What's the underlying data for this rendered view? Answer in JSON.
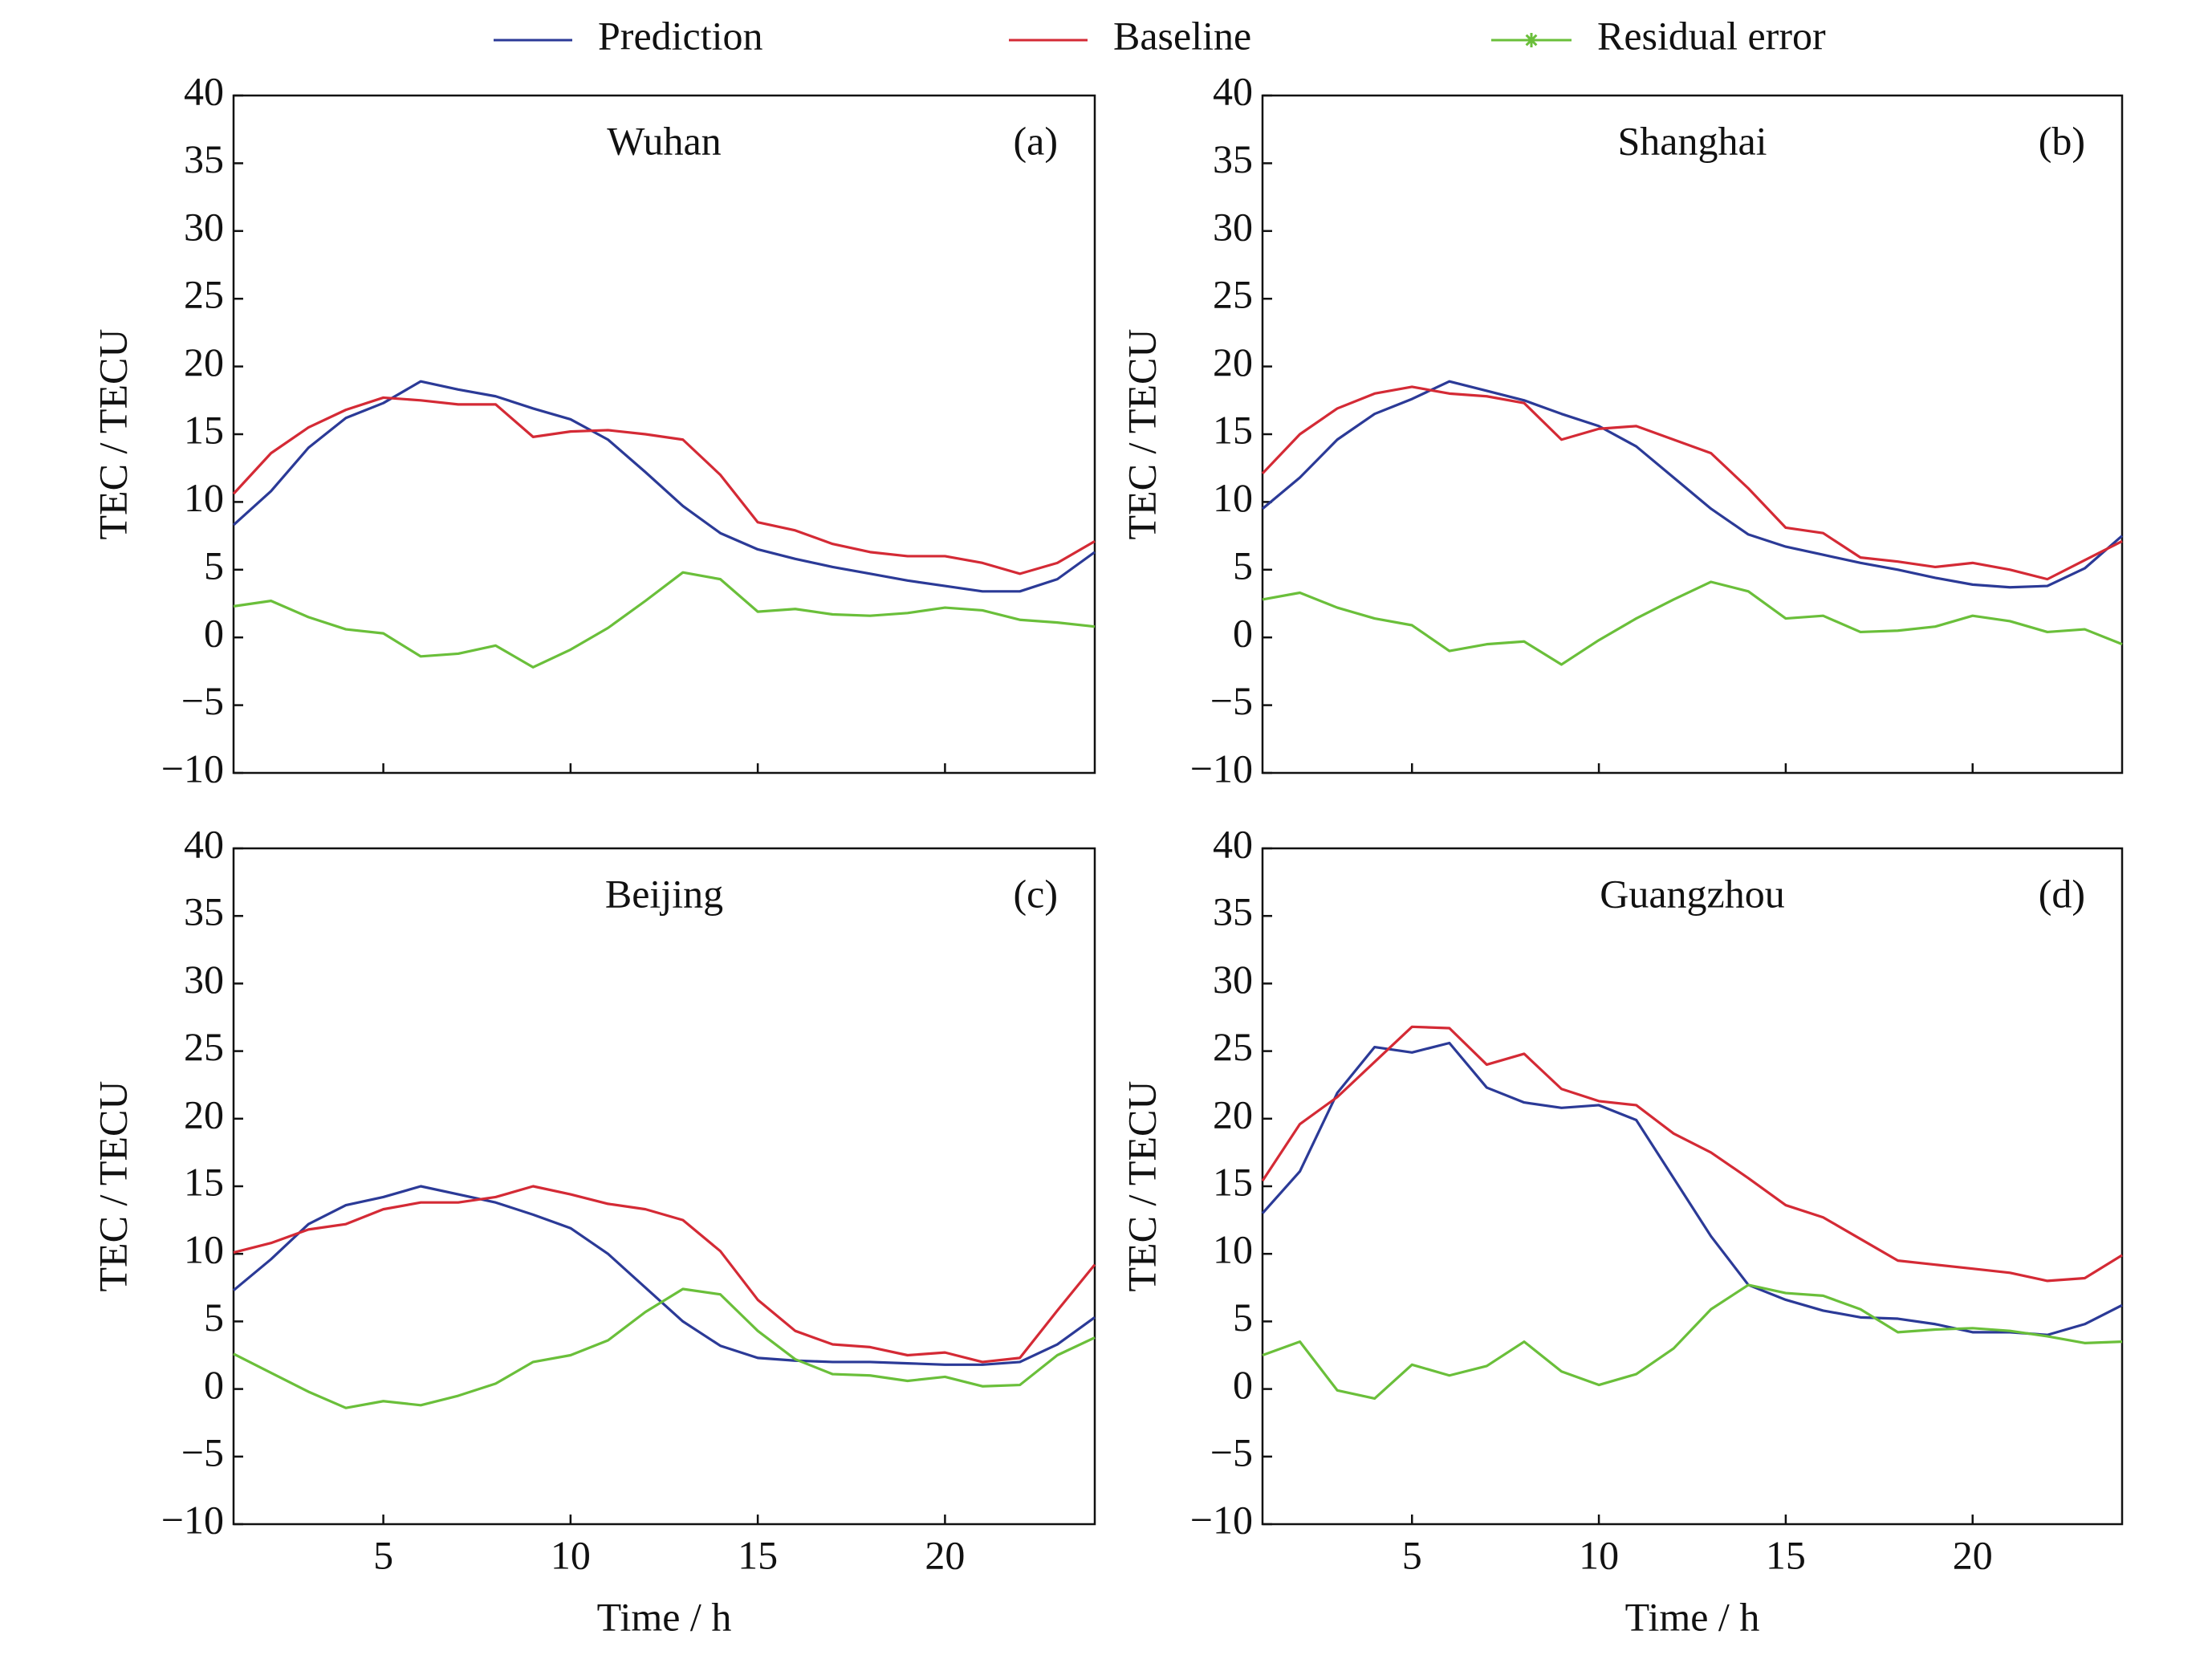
{
  "chart_data": [
    {
      "type": "line",
      "title": "Wuhan",
      "panel_label": "(a)",
      "ylabel": "TEC / TECU",
      "x": [
        1,
        2,
        3,
        4,
        5,
        6,
        7,
        8,
        9,
        10,
        11,
        12,
        13,
        14,
        15,
        16,
        17,
        18,
        19,
        20,
        21,
        22,
        23,
        24
      ],
      "xlim": [
        1,
        24
      ],
      "xticks": [
        5,
        10,
        15,
        20
      ],
      "ylim": [
        -10,
        40
      ],
      "yticks": [
        {
          "value": -10,
          "label": "−10"
        },
        {
          "value": -5,
          "label": "−5"
        },
        0,
        5,
        10,
        15,
        20,
        25,
        30,
        35,
        40
      ],
      "series": [
        {
          "name": "Prediction",
          "color": "#2b3a97",
          "values": [
            8.3,
            10.8,
            14,
            16.2,
            17.3,
            18.9,
            18.3,
            17.8,
            16.9,
            16.1,
            14.6,
            12.2,
            9.7,
            7.7,
            6.5,
            5.8,
            5.2,
            4.7,
            4.2,
            3.8,
            3.4,
            3.4,
            4.3,
            6.3
          ]
        },
        {
          "name": "Baseline",
          "color": "#d42a35",
          "values": [
            10.6,
            13.6,
            15.5,
            16.8,
            17.7,
            17.5,
            17.2,
            17.2,
            14.8,
            15.2,
            15.3,
            15.0,
            14.6,
            12.0,
            8.5,
            7.9,
            6.9,
            6.3,
            6.0,
            6.0,
            5.5,
            4.7,
            5.5,
            7.1
          ]
        },
        {
          "name": "Residual error",
          "color": "#6abf3a",
          "legend_marker": "star",
          "values": [
            2.3,
            2.7,
            1.5,
            0.6,
            0.3,
            -1.4,
            -1.2,
            -0.6,
            -2.2,
            -0.9,
            0.7,
            2.7,
            4.8,
            4.3,
            1.9,
            2.1,
            1.7,
            1.6,
            1.8,
            2.2,
            2.0,
            1.3,
            1.1,
            0.8
          ]
        }
      ]
    },
    {
      "type": "line",
      "title": "Shanghai",
      "panel_label": "(b)",
      "ylabel": "TEC / TECU",
      "x": [
        1,
        2,
        3,
        4,
        5,
        6,
        7,
        8,
        9,
        10,
        11,
        12,
        13,
        14,
        15,
        16,
        17,
        18,
        19,
        20,
        21,
        22,
        23,
        24
      ],
      "xlim": [
        1,
        24
      ],
      "xticks": [
        5,
        10,
        15,
        20
      ],
      "ylim": [
        -10,
        40
      ],
      "yticks": [
        {
          "value": -10,
          "label": "−10"
        },
        {
          "value": -5,
          "label": "−5"
        },
        0,
        5,
        10,
        15,
        20,
        25,
        30,
        35,
        40
      ],
      "series": [
        {
          "name": "Prediction",
          "color": "#2b3a97",
          "values": [
            9.5,
            11.8,
            14.6,
            16.5,
            17.6,
            18.9,
            18.2,
            17.5,
            16.5,
            15.6,
            14.1,
            11.8,
            9.5,
            7.6,
            6.7,
            6.1,
            5.5,
            5.0,
            4.4,
            3.9,
            3.7,
            3.8,
            5.1,
            7.5
          ]
        },
        {
          "name": "Baseline",
          "color": "#d42a35",
          "values": [
            12.1,
            15.0,
            16.9,
            18.0,
            18.5,
            18.0,
            17.8,
            17.3,
            14.6,
            15.4,
            15.6,
            14.6,
            13.6,
            11.0,
            8.1,
            7.7,
            5.9,
            5.6,
            5.2,
            5.5,
            5.0,
            4.3,
            5.7,
            7.1
          ]
        },
        {
          "name": "Residual error",
          "color": "#6abf3a",
          "values": [
            2.8,
            3.3,
            2.2,
            1.4,
            0.9,
            -1.0,
            -0.5,
            -0.3,
            -2.0,
            -0.2,
            1.4,
            2.8,
            4.1,
            3.4,
            1.4,
            1.6,
            0.4,
            0.5,
            0.8,
            1.6,
            1.2,
            0.4,
            0.6,
            -0.5
          ]
        }
      ]
    },
    {
      "type": "line",
      "title": "Beijing",
      "panel_label": "(c)",
      "ylabel": "TEC / TECU",
      "xlabel": "Time / h",
      "x": [
        1,
        2,
        3,
        4,
        5,
        6,
        7,
        8,
        9,
        10,
        11,
        12,
        13,
        14,
        15,
        16,
        17,
        18,
        19,
        20,
        21,
        22,
        23,
        24
      ],
      "xlim": [
        1,
        24
      ],
      "xticks": [
        5,
        10,
        15,
        20
      ],
      "ylim": [
        -10,
        40
      ],
      "yticks": [
        {
          "value": -10,
          "label": "−10"
        },
        {
          "value": -5,
          "label": "−5"
        },
        0,
        5,
        10,
        15,
        20,
        25,
        30,
        35,
        40
      ],
      "series": [
        {
          "name": "Prediction",
          "color": "#2b3a97",
          "values": [
            7.3,
            9.6,
            12.2,
            13.6,
            14.2,
            15.0,
            14.4,
            13.8,
            12.9,
            11.9,
            10.0,
            7.5,
            5.0,
            3.2,
            2.3,
            2.1,
            2.0,
            2.0,
            1.9,
            1.8,
            1.8,
            2.0,
            3.3,
            5.3
          ]
        },
        {
          "name": "Baseline",
          "color": "#d42a35",
          "values": [
            10.1,
            10.8,
            11.8,
            12.2,
            13.3,
            13.8,
            13.8,
            14.2,
            15.0,
            14.4,
            13.7,
            13.3,
            12.5,
            10.2,
            6.6,
            4.3,
            3.3,
            3.1,
            2.5,
            2.7,
            2.0,
            2.3,
            5.8,
            9.2
          ]
        },
        {
          "name": "Residual error",
          "color": "#6abf3a",
          "values": [
            2.6,
            1.2,
            -0.2,
            -1.4,
            -0.9,
            -1.2,
            -0.5,
            0.4,
            2.0,
            2.5,
            3.6,
            5.7,
            7.4,
            7.0,
            4.3,
            2.2,
            1.1,
            1.0,
            0.6,
            0.9,
            0.2,
            0.3,
            2.5,
            3.8
          ]
        }
      ]
    },
    {
      "type": "line",
      "title": "Guangzhou",
      "panel_label": "(d)",
      "ylabel": "TEC / TECU",
      "xlabel": "Time / h",
      "x": [
        1,
        2,
        3,
        4,
        5,
        6,
        7,
        8,
        9,
        10,
        11,
        12,
        13,
        14,
        15,
        16,
        17,
        18,
        19,
        20,
        21,
        22,
        23,
        24
      ],
      "xlim": [
        1,
        24
      ],
      "xticks": [
        5,
        10,
        15,
        20
      ],
      "ylim": [
        -10,
        40
      ],
      "yticks": [
        {
          "value": -10,
          "label": "−10"
        },
        {
          "value": -5,
          "label": "−5"
        },
        0,
        5,
        10,
        15,
        20,
        25,
        30,
        35,
        40
      ],
      "series": [
        {
          "name": "Prediction",
          "color": "#2b3a97",
          "values": [
            13.0,
            16.1,
            21.9,
            25.3,
            24.9,
            25.6,
            22.3,
            21.2,
            20.8,
            21.0,
            19.9,
            15.6,
            11.3,
            7.7,
            6.6,
            5.8,
            5.3,
            5.2,
            4.8,
            4.2,
            4.2,
            4.0,
            4.8,
            6.2
          ]
        },
        {
          "name": "Baseline",
          "color": "#d42a35",
          "values": [
            15.4,
            19.6,
            21.6,
            24.2,
            26.8,
            26.7,
            24.0,
            24.8,
            22.2,
            21.3,
            21.0,
            18.9,
            17.5,
            15.6,
            13.6,
            12.7,
            11.1,
            9.5,
            9.2,
            8.9,
            8.6,
            8.0,
            8.2,
            9.9
          ]
        },
        {
          "name": "Residual error",
          "color": "#6abf3a",
          "values": [
            2.5,
            3.5,
            -0.1,
            -0.7,
            1.8,
            1.0,
            1.7,
            3.5,
            1.3,
            0.3,
            1.1,
            3.0,
            5.9,
            7.7,
            7.1,
            6.9,
            5.9,
            4.2,
            4.4,
            4.5,
            4.3,
            3.9,
            3.4,
            3.5
          ]
        }
      ]
    }
  ]
}
